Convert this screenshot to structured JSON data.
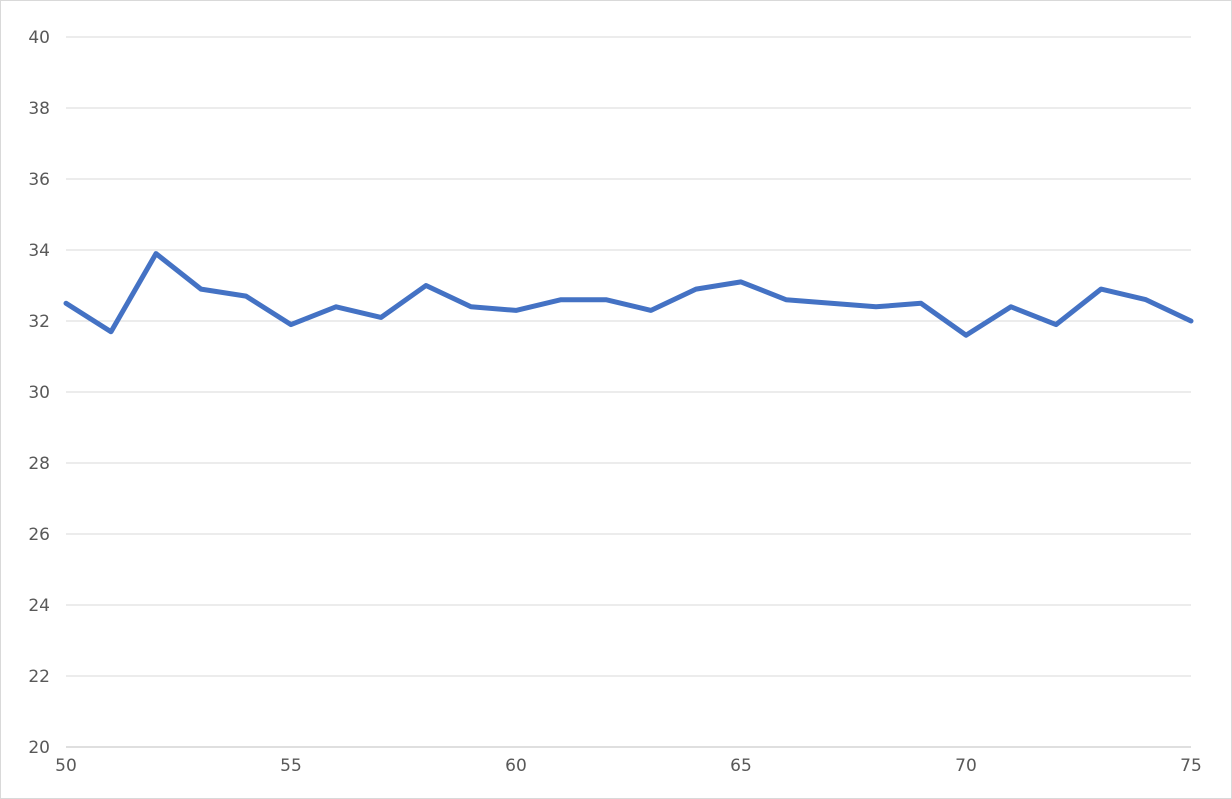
{
  "chart_data": {
    "type": "line",
    "title": "",
    "xlabel": "",
    "ylabel": "",
    "xlim": [
      50,
      75
    ],
    "ylim": [
      20,
      40
    ],
    "x_ticks": [
      50,
      55,
      60,
      65,
      70,
      75
    ],
    "y_ticks": [
      20,
      22,
      24,
      26,
      28,
      30,
      32,
      34,
      36,
      38,
      40
    ],
    "grid": true,
    "legend": "none",
    "series": [
      {
        "color": "#4472c4",
        "x": [
          50,
          51,
          52,
          53,
          54,
          55,
          56,
          57,
          58,
          59,
          60,
          61,
          62,
          63,
          64,
          65,
          66,
          67,
          68,
          69,
          70,
          71,
          72,
          73,
          74,
          75
        ],
        "values": [
          32.5,
          31.7,
          33.9,
          32.9,
          32.7,
          31.9,
          32.4,
          32.1,
          33.0,
          32.4,
          32.3,
          32.6,
          32.6,
          32.3,
          32.9,
          33.1,
          32.6,
          32.5,
          32.4,
          32.5,
          31.6,
          32.4,
          31.9,
          32.9,
          32.6,
          32.0
        ]
      }
    ]
  }
}
